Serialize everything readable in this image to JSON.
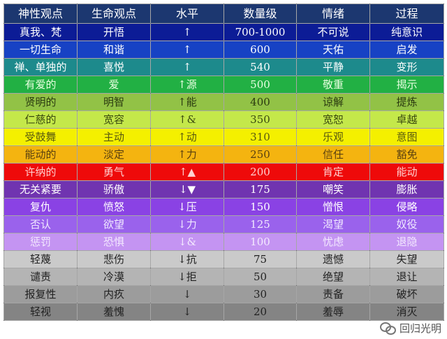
{
  "table": {
    "headers": [
      "神性观点",
      "生命观点",
      "水平",
      "数量级",
      "情绪",
      "过程"
    ],
    "rows": [
      {
        "cells": [
          "真我、梵",
          "开悟",
          "↑",
          "700-1000",
          "不可说",
          "纯意识"
        ],
        "bg": "#0c1c96",
        "fg": "#ffffff"
      },
      {
        "cells": [
          "一切生命",
          "和谐",
          "↑",
          "600",
          "天佑",
          "启发"
        ],
        "bg": "#1742c4",
        "fg": "#ffffff"
      },
      {
        "cells": [
          "禅、单独的",
          "喜悦",
          "↑",
          "540",
          "平静",
          "变形"
        ],
        "bg": "#1d8a8c",
        "fg": "#ffffff"
      },
      {
        "cells": [
          "有爱的",
          "爱",
          "↑源",
          "500",
          "敬重",
          "揭示"
        ],
        "bg": "#22b044",
        "fg": "#e8ffe0"
      },
      {
        "cells": [
          "贤明的",
          "明智",
          "↑能",
          "400",
          "谅解",
          "提炼"
        ],
        "bg": "#92c246",
        "fg": "#2a3a10"
      },
      {
        "cells": [
          "仁慈的",
          "宽容",
          "↑&",
          "350",
          "宽恕",
          "卓越"
        ],
        "bg": "#c4e84a",
        "fg": "#3a4a10"
      },
      {
        "cells": [
          "受鼓舞",
          "主动",
          "↑动",
          "310",
          "乐观",
          "意图"
        ],
        "bg": "#f4f000",
        "fg": "#5a5a10"
      },
      {
        "cells": [
          "能动的",
          "淡定",
          "↑力",
          "250",
          "信任",
          "豁免"
        ],
        "bg": "#f4b410",
        "fg": "#5a4010"
      },
      {
        "cells": [
          "许纳的",
          "勇气",
          "↑▲",
          "200",
          "肯定",
          "能动"
        ],
        "bg": "#ee0a0a",
        "fg": "#ffd0d0"
      },
      {
        "cells": [
          "无关紧要",
          "骄傲",
          "↓▼",
          "175",
          "嘲笑",
          "膨胀"
        ],
        "bg": "#7034b0",
        "fg": "#ffffff"
      },
      {
        "cells": [
          "复仇",
          "愤怒",
          "↓压",
          "150",
          "憎恨",
          "侵略"
        ],
        "bg": "#8a42e4",
        "fg": "#ffffff"
      },
      {
        "cells": [
          "否认",
          "欲望",
          "↓力",
          "125",
          "渴望",
          "奴役"
        ],
        "bg": "#9a62ec",
        "fg": "#f0e8ff"
      },
      {
        "cells": [
          "惩罚",
          "恐惧",
          "↓&",
          "100",
          "忧虑",
          "退隐"
        ],
        "bg": "#c494f2",
        "fg": "#f4eaff"
      },
      {
        "cells": [
          "轻蔑",
          "悲伤",
          "↓抗",
          "75",
          "遗憾",
          "失望"
        ],
        "bg": "#cacaca",
        "fg": "#222222"
      },
      {
        "cells": [
          "谴责",
          "冷漠",
          "↓拒",
          "50",
          "绝望",
          "退让"
        ],
        "bg": "#b4b4b4",
        "fg": "#222222"
      },
      {
        "cells": [
          "报复性",
          "内疚",
          "↓",
          "30",
          "责备",
          "破坏"
        ],
        "bg": "#9c9c9c",
        "fg": "#222222"
      },
      {
        "cells": [
          "轻视",
          "羞愧",
          "↓",
          "20",
          "羞辱",
          "消灭"
        ],
        "bg": "#848484",
        "fg": "#222222"
      }
    ]
  },
  "watermark": {
    "icon": "wechat-icon",
    "text": "回归光明"
  }
}
